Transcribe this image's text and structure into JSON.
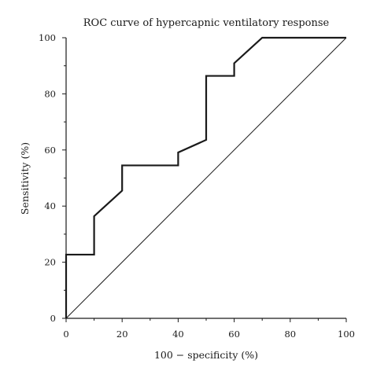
{
  "chart_data": {
    "type": "line",
    "title": "ROC curve of hypercapnic ventilatory response",
    "xlabel": "100 − specificity (%)",
    "ylabel": "Sensitivity (%)",
    "xlim": [
      0,
      100
    ],
    "ylim": [
      0,
      100
    ],
    "x_ticks": [
      "0",
      "20",
      "40",
      "60",
      "80",
      "100"
    ],
    "y_ticks": [
      "0",
      "20",
      "40",
      "60",
      "80",
      "100"
    ],
    "grid": false,
    "legend": "none",
    "series": [
      {
        "style": "step",
        "color": "#1a1a1a",
        "x": [
          0,
          0,
          10,
          10,
          20,
          20,
          40,
          40,
          50,
          50,
          60,
          60,
          70,
          100
        ],
        "y": [
          0,
          22.7,
          22.7,
          36.4,
          45.5,
          54.5,
          54.5,
          59.1,
          63.6,
          86.4,
          86.4,
          90.9,
          100,
          100
        ]
      },
      {
        "style": "reference",
        "color": "#1a1a1a",
        "x": [
          0,
          100
        ],
        "y": [
          0,
          100
        ]
      }
    ]
  }
}
